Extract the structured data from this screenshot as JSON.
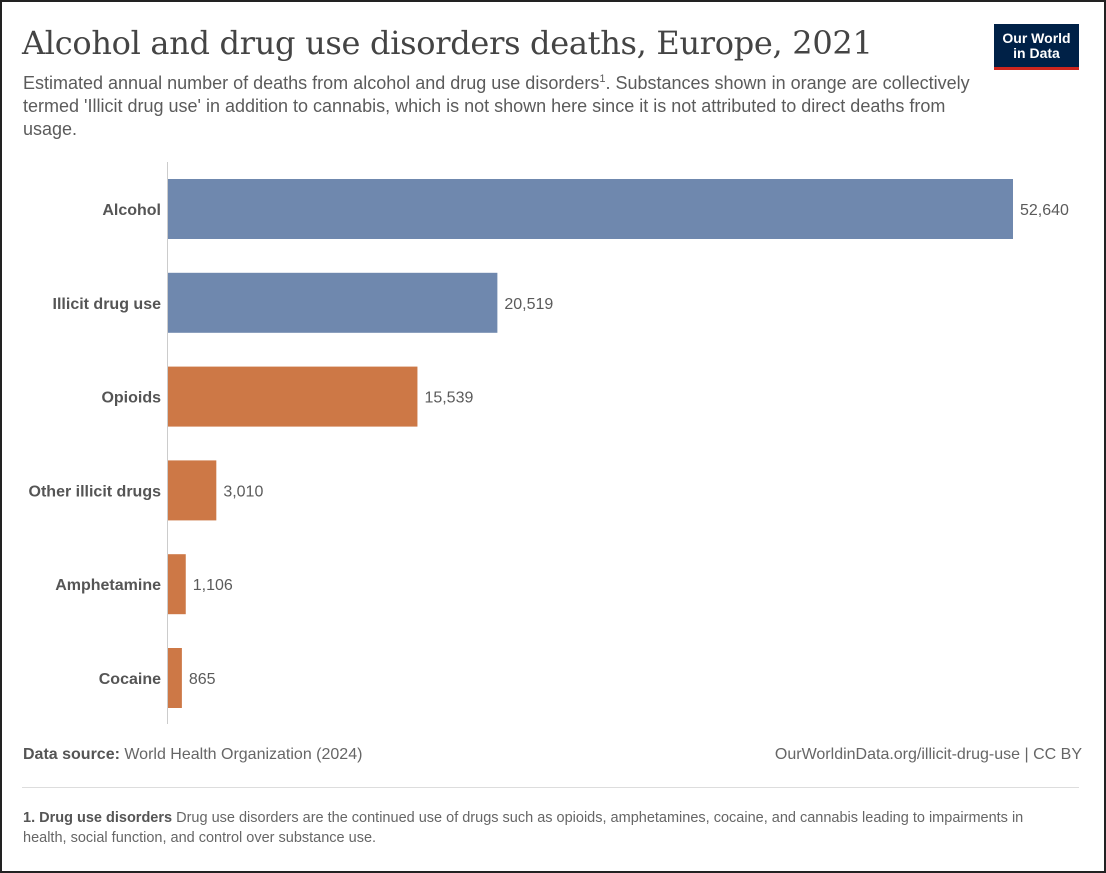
{
  "header": {
    "title": "Alcohol and drug use disorders deaths, Europe, 2021",
    "subtitle_part1": "Estimated annual number of deaths from alcohol and drug use disorders",
    "subtitle_sup": "1",
    "subtitle_part2": ". Substances shown in orange are collectively termed 'Illicit drug use' in addition to cannabis, which is not shown here since it is not attributed to direct deaths from usage.",
    "logo_line1": "Our World",
    "logo_line2": "in Data"
  },
  "colors": {
    "blue": "#6f88ae",
    "orange": "#cd7846",
    "axis": "#cccccc"
  },
  "chart_data": {
    "type": "bar",
    "orientation": "horizontal",
    "categories": [
      "Alcohol",
      "Illicit drug use",
      "Opioids",
      "Other illicit drugs",
      "Amphetamine",
      "Cocaine"
    ],
    "values": [
      52640,
      20519,
      15539,
      3010,
      1106,
      865
    ],
    "value_labels": [
      "52,640",
      "20,519",
      "15,539",
      "3,010",
      "1,106",
      "865"
    ],
    "bar_colors": [
      "blue",
      "blue",
      "orange",
      "orange",
      "orange",
      "orange"
    ],
    "xlim": [
      0,
      52640
    ]
  },
  "footer": {
    "source_label": "Data source:",
    "source_text": " World Health Organization (2024)",
    "url": "OurWorldinData.org/illicit-drug-use | CC BY",
    "footnote_label": "1. Drug use disorders",
    "footnote_text": " Drug use disorders are the continued use of drugs such as opioids, amphetamines, cocaine, and cannabis leading to impairments in health, social function, and control over substance use."
  }
}
